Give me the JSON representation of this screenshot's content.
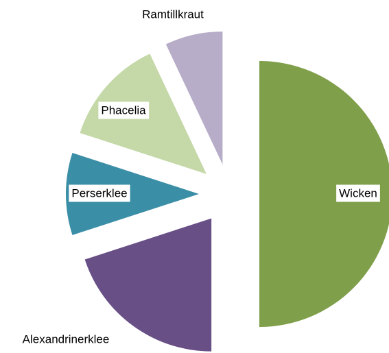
{
  "chart_data": {
    "type": "pie",
    "categories": [
      "Wicken",
      "Alexandrinerklee",
      "Perserklee",
      "Phacelia",
      "Ramtillkraut"
    ],
    "values": [
      50,
      20,
      10,
      13,
      7
    ],
    "colors": [
      "#7f9f4a",
      "#684f86",
      "#3a8ea6",
      "#c5d8a8",
      "#b7adc9"
    ]
  }
}
